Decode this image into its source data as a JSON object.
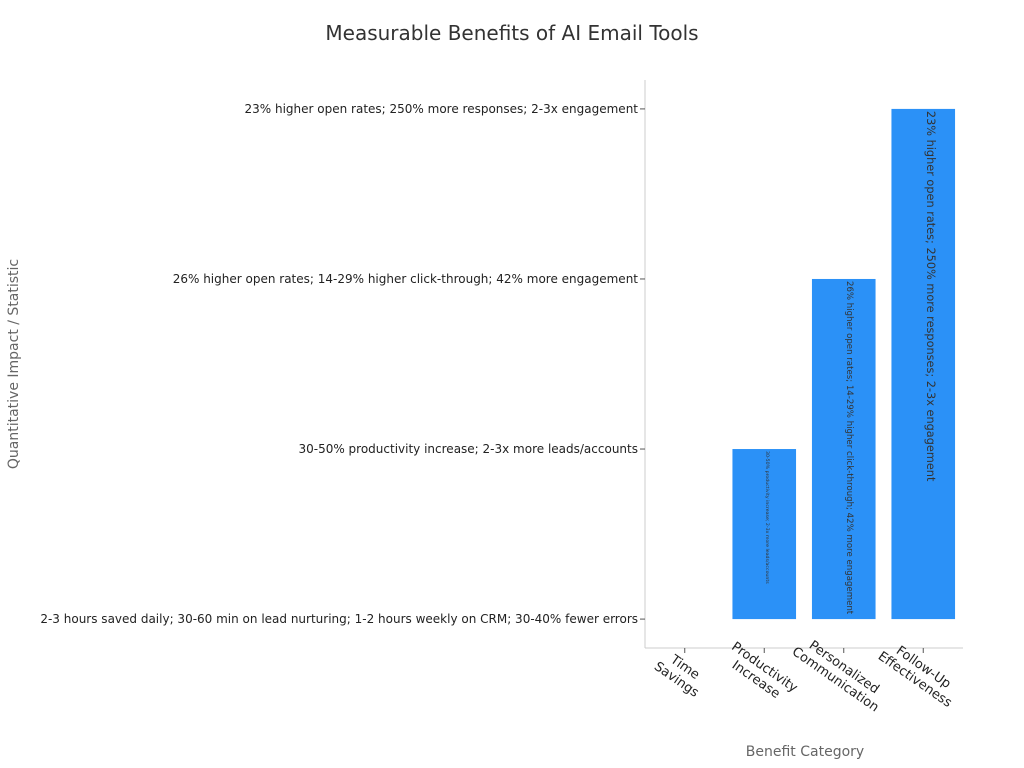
{
  "chart_data": {
    "type": "bar",
    "title": "Measurable Benefits of AI Email Tools",
    "xlabel": "Benefit Category",
    "ylabel": "Quantitative Impact / Statistic",
    "categories": [
      [
        "Time",
        "Savings"
      ],
      [
        "Productivity",
        "Increase"
      ],
      [
        "Personalized",
        "Communication"
      ],
      [
        "Follow-Up",
        "Effectiveness"
      ]
    ],
    "y_categories": [
      "2-3 hours saved daily; 30-60 min on lead nurturing; 1-2 hours weekly on CRM; 30-40% fewer errors",
      "30-50% productivity increase; 2-3x more leads/accounts",
      "26% higher open rates; 14-29% higher click-through; 42% more engagement",
      "23% higher open rates; 250% more responses; 2-3x engagement"
    ],
    "values": [
      0,
      1,
      2,
      3
    ],
    "bar_labels": [
      "2-3 hours saved daily; 30-60 min on lead nurturing; 1-2 hours weekly on CRM; 30-40% fewer errors",
      "30-50% productivity increase; 2-3x more leads/accounts",
      "26% higher open rates; 14-29% higher click-through; 42% more engagement",
      "23% higher open rates; 250% more responses; 2-3x engagement"
    ],
    "ylim": [
      -0.17,
      3.17
    ],
    "grid": false,
    "bar_color": "#2b91f7",
    "axis_color": "#cccccc",
    "text_color": "#222222",
    "label_color": "#666666"
  }
}
